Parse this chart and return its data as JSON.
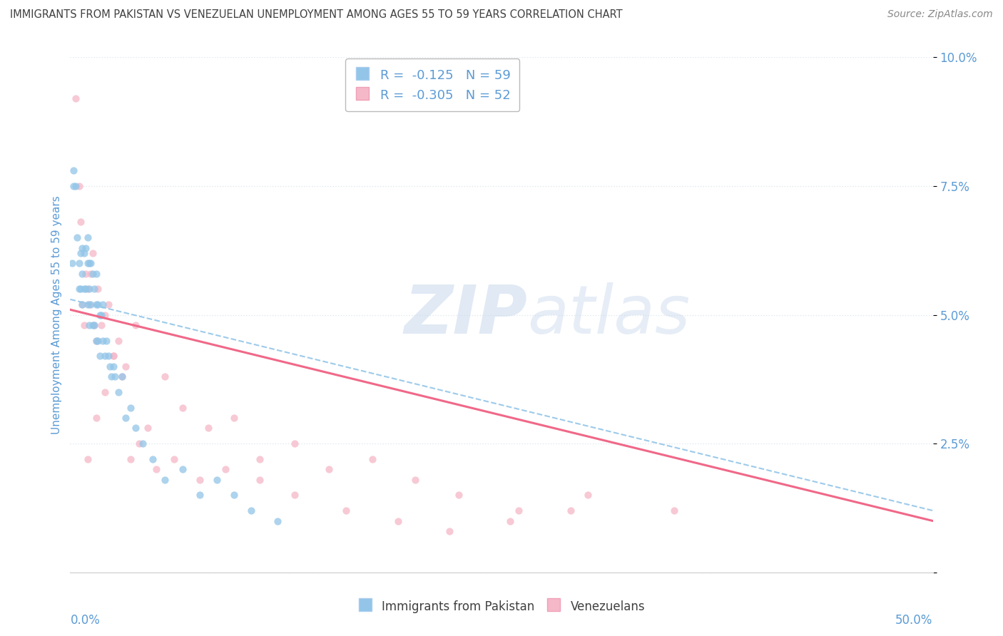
{
  "title": "IMMIGRANTS FROM PAKISTAN VS VENEZUELAN UNEMPLOYMENT AMONG AGES 55 TO 59 YEARS CORRELATION CHART",
  "source": "Source: ZipAtlas.com",
  "ylabel": "Unemployment Among Ages 55 to 59 years",
  "legend_blue_r": "R =  -0.125",
  "legend_blue_n": "N = 59",
  "legend_pink_r": "R =  -0.305",
  "legend_pink_n": "N = 52",
  "watermark_zip": "ZIP",
  "watermark_atlas": "atlas",
  "blue_color": "#92c5e8",
  "pink_color": "#f5b8c8",
  "blue_line_color": "#92c5e8",
  "pink_line_color": "#f06888",
  "axis_color": "#5b9bd5",
  "title_color": "#404040",
  "source_color": "#888888",
  "xlim": [
    0.0,
    0.5
  ],
  "ylim": [
    0.0,
    0.1
  ],
  "yticks": [
    0.0,
    0.025,
    0.05,
    0.075,
    0.1
  ],
  "ytick_labels": [
    "",
    "2.5%",
    "5.0%",
    "7.5%",
    "10.0%"
  ],
  "xtick_labels": [
    "0.0%",
    "50.0%"
  ],
  "blue_scatter_x": [
    0.001,
    0.002,
    0.002,
    0.003,
    0.004,
    0.005,
    0.005,
    0.006,
    0.006,
    0.007,
    0.007,
    0.007,
    0.008,
    0.008,
    0.009,
    0.009,
    0.01,
    0.01,
    0.01,
    0.011,
    0.011,
    0.011,
    0.012,
    0.012,
    0.013,
    0.013,
    0.014,
    0.014,
    0.015,
    0.015,
    0.015,
    0.016,
    0.016,
    0.017,
    0.017,
    0.018,
    0.019,
    0.019,
    0.02,
    0.021,
    0.022,
    0.023,
    0.024,
    0.025,
    0.026,
    0.028,
    0.03,
    0.032,
    0.035,
    0.038,
    0.042,
    0.048,
    0.055,
    0.065,
    0.075,
    0.085,
    0.095,
    0.105,
    0.12
  ],
  "blue_scatter_y": [
    0.06,
    0.078,
    0.075,
    0.075,
    0.065,
    0.06,
    0.055,
    0.062,
    0.055,
    0.063,
    0.058,
    0.052,
    0.062,
    0.055,
    0.063,
    0.055,
    0.065,
    0.06,
    0.052,
    0.06,
    0.055,
    0.048,
    0.06,
    0.052,
    0.058,
    0.048,
    0.055,
    0.048,
    0.058,
    0.052,
    0.045,
    0.052,
    0.045,
    0.05,
    0.042,
    0.05,
    0.052,
    0.045,
    0.042,
    0.045,
    0.042,
    0.04,
    0.038,
    0.04,
    0.038,
    0.035,
    0.038,
    0.03,
    0.032,
    0.028,
    0.025,
    0.022,
    0.018,
    0.02,
    0.015,
    0.018,
    0.015,
    0.012,
    0.01
  ],
  "pink_scatter_x": [
    0.003,
    0.005,
    0.006,
    0.007,
    0.008,
    0.009,
    0.01,
    0.011,
    0.012,
    0.013,
    0.014,
    0.015,
    0.016,
    0.018,
    0.02,
    0.022,
    0.025,
    0.028,
    0.032,
    0.038,
    0.045,
    0.055,
    0.065,
    0.08,
    0.095,
    0.11,
    0.13,
    0.15,
    0.175,
    0.2,
    0.225,
    0.26,
    0.3,
    0.35,
    0.01,
    0.015,
    0.02,
    0.025,
    0.03,
    0.035,
    0.04,
    0.05,
    0.06,
    0.075,
    0.09,
    0.11,
    0.13,
    0.16,
    0.19,
    0.22,
    0.255,
    0.29
  ],
  "pink_scatter_y": [
    0.092,
    0.075,
    0.068,
    0.052,
    0.048,
    0.058,
    0.055,
    0.052,
    0.058,
    0.062,
    0.048,
    0.045,
    0.055,
    0.048,
    0.05,
    0.052,
    0.042,
    0.045,
    0.04,
    0.048,
    0.028,
    0.038,
    0.032,
    0.028,
    0.03,
    0.022,
    0.025,
    0.02,
    0.022,
    0.018,
    0.015,
    0.012,
    0.015,
    0.012,
    0.022,
    0.03,
    0.035,
    0.042,
    0.038,
    0.022,
    0.025,
    0.02,
    0.022,
    0.018,
    0.02,
    0.018,
    0.015,
    0.012,
    0.01,
    0.008,
    0.01,
    0.012
  ],
  "blue_trend_x": [
    0.0,
    0.5
  ],
  "blue_trend_y_start": 0.053,
  "blue_trend_y_end": 0.012,
  "pink_trend_x": [
    0.0,
    0.5
  ],
  "pink_trend_y_start": 0.051,
  "pink_trend_y_end": 0.01,
  "background_color": "#ffffff",
  "grid_color": "#e0e8f0"
}
